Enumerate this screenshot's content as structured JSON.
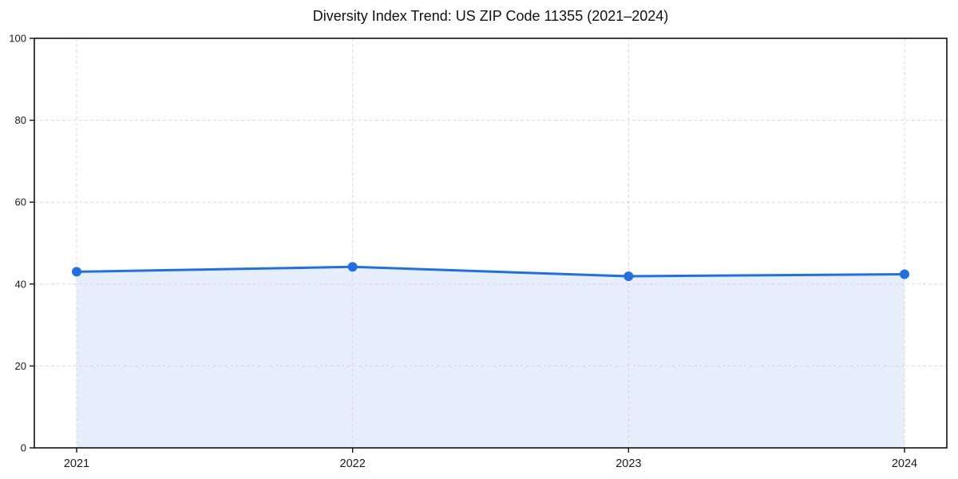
{
  "chart_data": {
    "type": "area",
    "title": "Diversity Index Trend: US ZIP Code 11355 (2021–2024)",
    "categories": [
      "2021",
      "2022",
      "2023",
      "2024"
    ],
    "values": [
      43,
      44.2,
      41.9,
      42.4
    ],
    "series_name": "Diversity Index",
    "xlabel": "",
    "ylabel": "",
    "ylim": [
      0,
      100
    ],
    "yticks": [
      0,
      20,
      40,
      60,
      80,
      100
    ],
    "grid": true,
    "grid_style": "dashed",
    "legend": "none",
    "colors": {
      "line": "#2270e0",
      "marker": "#2270e0",
      "fill": "#e6edfb",
      "grid": "#d9d9d9",
      "axis": "#111111",
      "text": "#1a1a1a",
      "background": "#ffffff"
    }
  }
}
